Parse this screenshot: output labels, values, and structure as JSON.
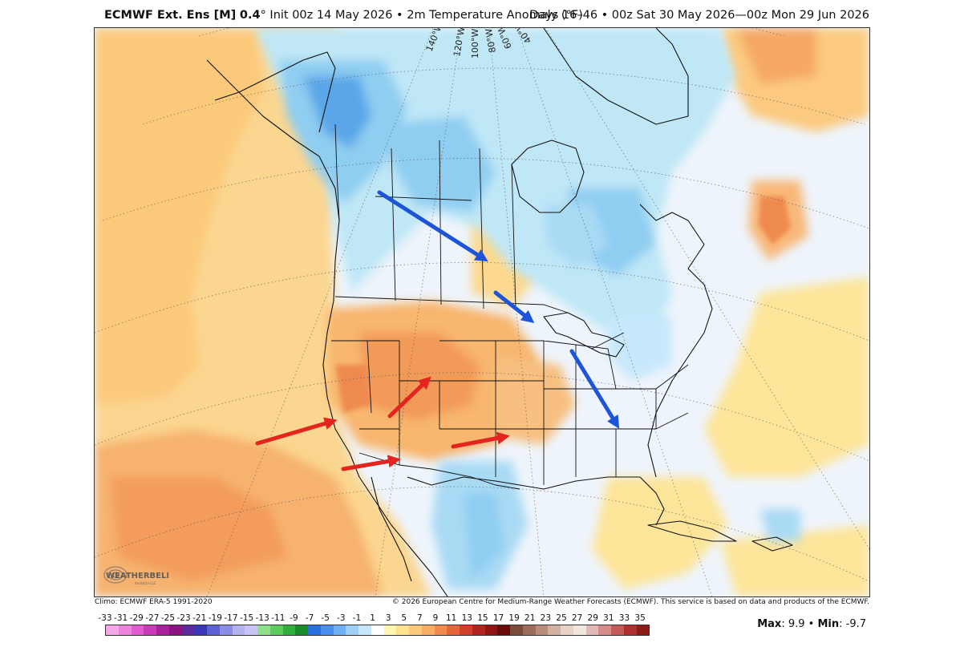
{
  "header": {
    "model": "ECMWF Ext. Ens [M]",
    "resolution": "0.4",
    "degree_symbol": "°",
    "init": "Init 00z 14 May 2026",
    "bullet": "•",
    "variable": "2m Temperature Anomaly (°F)",
    "valid": "Days 16–46 • 00z Sat 30 May 2026—00z Mon 29 Jun 2026"
  },
  "footer": {
    "climo": "Climo: ECMWF ERA-5 1991-2020",
    "copyright": "© 2026 European Centre for Medium-Range Weather Forecasts (ECMWF). This service is based on data and products of the ECMWF.",
    "max_label": "Max",
    "max_value": ": 9.9",
    "bullet": "•",
    "min_label": "Min",
    "min_value": ": -9.7"
  },
  "logo": {
    "text": "WEATHERBELL",
    "sub": "Analytics LLC"
  },
  "map": {
    "longitude_labels": [
      "140°W",
      "120°W",
      "100°W",
      "80°W",
      "60°W",
      "40°W"
    ],
    "colors": {
      "ocean_neutral": "#eef4fb",
      "land_neutral": "#f7fbff",
      "warm_light": "#fbe38e",
      "warm_mid": "#fbcf7d",
      "warm_orange": "#f6a865",
      "warm_deep": "#ef8a4f",
      "cool_light": "#b8e6f7",
      "cool_mid": "#8fcdf1",
      "cool_deep": "#5aa6e8",
      "arrow_warm": "#e3241f",
      "arrow_cool": "#1e55d8"
    },
    "arrows": [
      {
        "name": "arrow-cool-canada-prairies",
        "color": "cool"
      },
      {
        "name": "arrow-cool-ontario",
        "color": "cool"
      },
      {
        "name": "arrow-cool-southeast",
        "color": "cool"
      },
      {
        "name": "arrow-warm-california",
        "color": "warm"
      },
      {
        "name": "arrow-warm-baja",
        "color": "warm"
      },
      {
        "name": "arrow-warm-rockies",
        "color": "warm"
      },
      {
        "name": "arrow-warm-southern-plains",
        "color": "warm"
      }
    ]
  },
  "colorbar": {
    "labels": [
      "-33",
      "-31",
      "-29",
      "-27",
      "-25",
      "-23",
      "-21",
      "-19",
      "-17",
      "-15",
      "-13",
      "-11",
      "-9",
      "-7",
      "-5",
      "-3",
      "-1",
      "1",
      "3",
      "5",
      "7",
      "9",
      "11",
      "13",
      "15",
      "17",
      "19",
      "21",
      "23",
      "25",
      "27",
      "29",
      "31",
      "33",
      "35"
    ],
    "colors": [
      "#f5a8e8",
      "#ec84dc",
      "#e25ccf",
      "#cc3aba",
      "#aa1f9b",
      "#8a137f",
      "#5b2a9e",
      "#3b36b8",
      "#5c62d4",
      "#8a8de6",
      "#b3b3f0",
      "#c9c4f4",
      "#8ee08a",
      "#5ccc5c",
      "#2eb03a",
      "#178a2a",
      "#2a6fe0",
      "#4a8ef0",
      "#6fb0f5",
      "#9fd0f8",
      "#c7e8fb",
      "#ffffff",
      "#fff7b0",
      "#fde38e",
      "#fbc97a",
      "#f8ad62",
      "#f28a4c",
      "#e6653a",
      "#d2402b",
      "#b32320",
      "#8f1414",
      "#6a0b0b",
      "#7a4a3a",
      "#9c6c5a",
      "#b88b7a",
      "#d2b0a2",
      "#e8d2c8",
      "#f2e6e0",
      "#e5b8b8",
      "#d68a8a",
      "#c45a5a",
      "#b03030",
      "#8f1a1a"
    ]
  }
}
